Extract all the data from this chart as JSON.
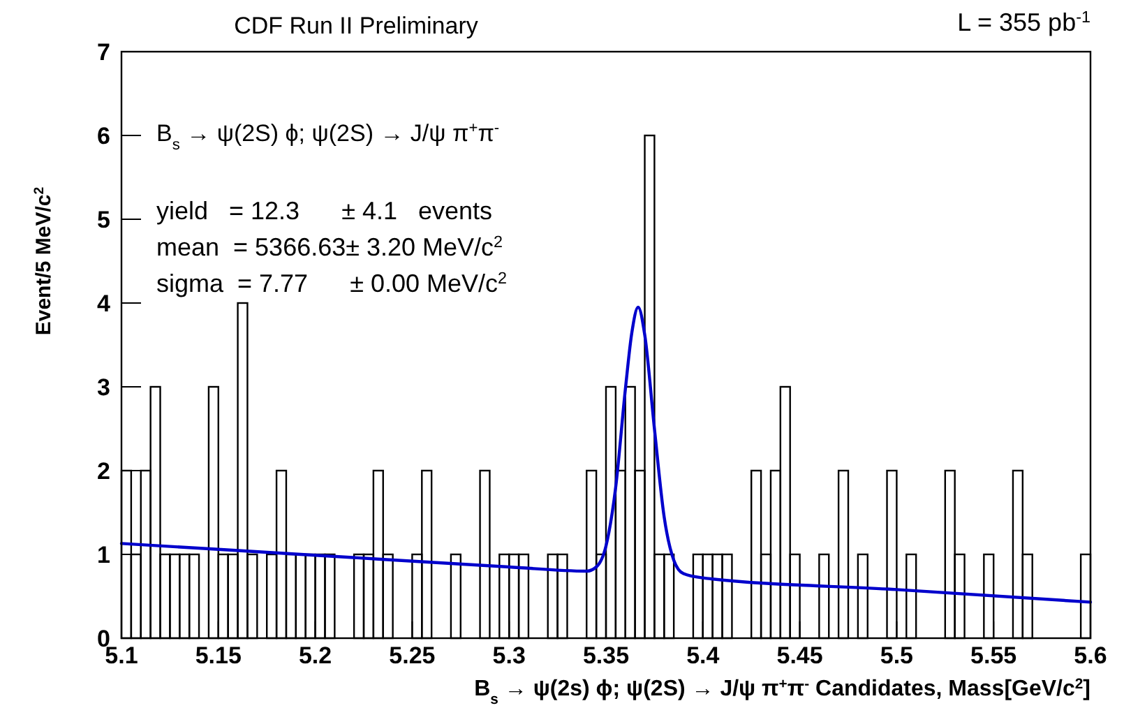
{
  "chart_data": {
    "type": "histogram",
    "title": "CDF Run II Preliminary",
    "xlabel": "B$_{s}$ → ψ(2s) ϕ; ψ(2S) → J/ψ π$^{+}$π$^{-}$ Candidates, Mass[GeV/c$^{2}$]",
    "ylabel": "Event/5 MeV/c$^{2}$",
    "annotations": [
      "L = 355 pb$^{-1}$",
      "B$_{s}$ → ψ(2S) ϕ; ψ(2S) → J/ψ π$^{+}$π$^{-}$",
      "yield   = 12.3      ± 4.1   events",
      "mean  = 5366.63± 3.20 MeV/c$^{2}$",
      "sigma  = 7.77      ± 0.00 MeV/c$^{2}$"
    ],
    "bins": [
      5.1,
      5.105,
      5.11,
      5.115,
      5.12,
      5.125,
      5.13,
      5.135,
      5.14,
      5.145,
      5.15,
      5.155,
      5.16,
      5.165,
      5.17,
      5.175,
      5.18,
      5.185,
      5.19,
      5.195,
      5.2,
      5.205,
      5.21,
      5.215,
      5.22,
      5.225,
      5.23,
      5.235,
      5.24,
      5.245,
      5.25,
      5.255,
      5.26,
      5.265,
      5.27,
      5.275,
      5.28,
      5.285,
      5.29,
      5.295,
      5.3,
      5.305,
      5.31,
      5.315,
      5.32,
      5.325,
      5.33,
      5.335,
      5.34,
      5.345,
      5.35,
      5.355,
      5.36,
      5.365,
      5.37,
      5.375,
      5.38,
      5.385,
      5.39,
      5.395,
      5.4,
      5.405,
      5.41,
      5.415,
      5.42,
      5.425,
      5.43,
      5.435,
      5.44,
      5.445,
      5.45,
      5.455,
      5.46,
      5.465,
      5.47,
      5.475,
      5.48,
      5.485,
      5.49,
      5.495,
      5.5,
      5.505,
      5.51,
      5.515,
      5.52,
      5.525,
      5.53,
      5.535,
      5.54,
      5.545,
      5.55,
      5.555,
      5.56,
      5.565,
      5.57,
      5.575,
      5.58,
      5.585,
      5.59,
      5.595,
      5.6
    ],
    "values": [
      2,
      1,
      2,
      3,
      1,
      1,
      1,
      1,
      0,
      3,
      1,
      1,
      4,
      1,
      0,
      1,
      2,
      1,
      1,
      1,
      1,
      1,
      0,
      0,
      1,
      1,
      2,
      1,
      0,
      0,
      1,
      2,
      0,
      0,
      1,
      0,
      0,
      2,
      0,
      1,
      1,
      1,
      0,
      0,
      1,
      1,
      0,
      0,
      2,
      1,
      3,
      2,
      3,
      2,
      6,
      1,
      1,
      0,
      0,
      1,
      1,
      1,
      1,
      0,
      0,
      2,
      1,
      2,
      3,
      1,
      0,
      0,
      1,
      0,
      2,
      0,
      1,
      0,
      0,
      2,
      0,
      1,
      0,
      0,
      0,
      2,
      1,
      0,
      0,
      1,
      0,
      0,
      2,
      1,
      0,
      0,
      0,
      0,
      0,
      1
    ],
    "color": "#000000",
    "series": [
      {
        "type": "line",
        "color": "#0000cc",
        "x": [
          5.1,
          5.2,
          5.3,
          5.34,
          5.345,
          5.35,
          5.355,
          5.36,
          5.3633,
          5.3666,
          5.37,
          5.375,
          5.38,
          5.385,
          5.39,
          5.4,
          5.5,
          5.6
        ],
        "values": [
          1.13,
          0.99,
          0.85,
          0.8,
          0.85,
          1.1,
          1.8,
          2.97,
          3.64,
          3.95,
          3.62,
          2.5,
          1.45,
          0.93,
          0.77,
          0.72,
          0.58,
          0.43
        ]
      }
    ],
    "xlim": [
      5.1,
      5.6
    ],
    "xticks": [
      5.1,
      5.15,
      5.2,
      5.25,
      5.3,
      5.35,
      5.4,
      5.45,
      5.5,
      5.55,
      5.6
    ],
    "ylim": [
      0,
      7
    ],
    "yticks": [
      0,
      1,
      2,
      3,
      4,
      5,
      6,
      7
    ],
    "grid": false
  }
}
